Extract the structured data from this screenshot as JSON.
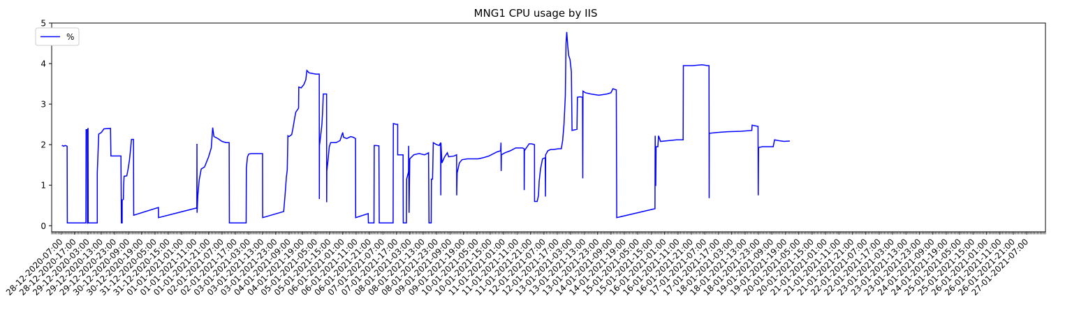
{
  "chart_data": {
    "type": "line",
    "title": "MNG1 CPU usage by IIS",
    "xlabel": "",
    "ylabel": "",
    "ylim": [
      -0.15,
      5
    ],
    "yticks": [
      0,
      1,
      2,
      3,
      4,
      5
    ],
    "x_range": [
      "2020-12-28 00:00",
      "2021-01-27 21:00"
    ],
    "xtick_labels": [
      "28-12-2020-07:00",
      "28-12-2020-17:00",
      "29-12-2020-03:00",
      "29-12-2020-13:00",
      "29-12-2020-23:00",
      "30-12-2020-09:00",
      "30-12-2020-19:00",
      "31-12-2020-05:00",
      "31-12-2020-15:00",
      "01-01-2021-01:00",
      "01-01-2021-11:00",
      "01-01-2021-21:00",
      "02-01-2021-07:00",
      "02-01-2021-17:00",
      "03-01-2021-03:00",
      "03-01-2021-13:00",
      "03-01-2021-23:00",
      "04-01-2021-09:00",
      "04-01-2021-19:00",
      "05-01-2021-05:00",
      "05-01-2021-15:00",
      "06-01-2021-01:00",
      "06-01-2021-11:00",
      "06-01-2021-21:00",
      "07-01-2021-07:00",
      "07-01-2021-17:00",
      "08-01-2021-03:00",
      "08-01-2021-13:00",
      "08-01-2021-23:00",
      "09-01-2021-09:00",
      "09-01-2021-19:00",
      "10-01-2021-05:00",
      "10-01-2021-15:00",
      "11-01-2021-01:00",
      "11-01-2021-11:00",
      "11-01-2021-21:00",
      "12-01-2021-07:00",
      "12-01-2021-17:00",
      "13-01-2021-03:00",
      "13-01-2021-13:00",
      "13-01-2021-23:00",
      "14-01-2021-09:00",
      "14-01-2021-19:00",
      "15-01-2021-05:00",
      "15-01-2021-15:00",
      "16-01-2021-01:00",
      "16-01-2021-11:00",
      "16-01-2021-21:00",
      "17-01-2021-07:00",
      "17-01-2021-17:00",
      "18-01-2021-03:00",
      "18-01-2021-13:00",
      "18-01-2021-23:00",
      "19-01-2021-09:00",
      "19-01-2021-19:00",
      "20-01-2021-05:00",
      "20-01-2021-15:00",
      "21-01-2021-01:00",
      "21-01-2021-11:00",
      "21-01-2021-21:00",
      "22-01-2021-07:00",
      "22-01-2021-17:00",
      "23-01-2021-03:00",
      "23-01-2021-13:00",
      "23-01-2021-23:00",
      "24-01-2021-09:00",
      "24-01-2021-19:00",
      "25-01-2021-05:00",
      "25-01-2021-15:00",
      "26-01-2021-01:00",
      "26-01-2021-11:00",
      "26-01-2021-21:00",
      "27-01-2021-07:00"
    ],
    "legend": {
      "position": "upper-left"
    },
    "grid": false,
    "series": [
      {
        "name": "%",
        "color": "#0000ff",
        "points": [
          [
            "2020-12-28 07:34",
            1.97
          ],
          [
            "2020-12-28 08:10",
            1.98
          ],
          [
            "2020-12-28 09:00",
            1.96
          ],
          [
            "2020-12-28 10:00",
            1.98
          ],
          [
            "2020-12-28 11:00",
            1.97
          ],
          [
            "2020-12-28 11:31",
            1.96
          ],
          [
            "2020-12-28 11:40",
            0.07
          ],
          [
            "2020-12-29 01:31",
            0.07
          ],
          [
            "2020-12-29 01:41",
            2.37
          ],
          [
            "2020-12-29 02:31",
            2.37
          ],
          [
            "2020-12-29 02:41",
            0.05
          ],
          [
            "2020-12-29 02:55",
            2.38
          ],
          [
            "2020-12-29 03:07",
            2.41
          ],
          [
            "2020-12-29 03:14",
            0.07
          ],
          [
            "2020-12-29 10:00",
            0.07
          ],
          [
            "2020-12-29 10:00",
            1.3
          ],
          [
            "2020-12-29 11:05",
            2.26
          ],
          [
            "2020-12-29 13:00",
            2.3
          ],
          [
            "2020-12-29 15:00",
            2.39
          ],
          [
            "2020-12-29 19:52",
            2.4
          ],
          [
            "2020-12-29 20:10",
            1.72
          ],
          [
            "2020-12-30 03:00",
            1.72
          ],
          [
            "2020-12-30 03:38",
            1.72
          ],
          [
            "2020-12-30 04:00",
            0.07
          ],
          [
            "2020-12-30 04:33",
            0.07
          ],
          [
            "2020-12-30 04:35",
            0.64
          ],
          [
            "2020-12-30 05:28",
            0.65
          ],
          [
            "2020-12-30 05:40",
            1.0
          ],
          [
            "2020-12-30 06:00",
            1.22
          ],
          [
            "2020-12-30 08:00",
            1.23
          ],
          [
            "2020-12-30 09:00",
            1.4
          ],
          [
            "2020-12-30 10:00",
            1.62
          ],
          [
            "2020-12-30 11:00",
            1.95
          ],
          [
            "2020-12-30 11:30",
            2.13
          ],
          [
            "2020-12-30 13:00",
            2.13
          ],
          [
            "2020-12-30 13:10",
            0.26
          ],
          [
            "2020-12-31 07:35",
            0.45
          ],
          [
            "2020-12-31 07:40",
            0.2
          ],
          [
            "2021-01-01 12:13",
            0.44
          ],
          [
            "2021-01-01 12:20",
            2.02
          ],
          [
            "2021-01-01 12:25",
            0.32
          ],
          [
            "2021-01-01 13:00",
            0.75
          ],
          [
            "2021-01-01 14:00",
            1.13
          ],
          [
            "2021-01-01 15:30",
            1.4
          ],
          [
            "2021-01-01 18:00",
            1.45
          ],
          [
            "2021-01-01 21:00",
            1.7
          ],
          [
            "2021-01-01 23:00",
            1.92
          ],
          [
            "2021-01-02 00:03",
            2.42
          ],
          [
            "2021-01-02 01:00",
            2.2
          ],
          [
            "2021-01-02 04:00",
            2.15
          ],
          [
            "2021-01-02 07:00",
            2.08
          ],
          [
            "2021-01-02 10:00",
            2.05
          ],
          [
            "2021-01-02 12:20",
            2.05
          ],
          [
            "2021-01-02 12:30",
            0.07
          ],
          [
            "2021-01-03 01:00",
            0.07
          ],
          [
            "2021-01-03 01:10",
            1.42
          ],
          [
            "2021-01-03 02:00",
            1.7
          ],
          [
            "2021-01-03 03:00",
            1.77
          ],
          [
            "2021-01-03 05:00",
            1.78
          ],
          [
            "2021-01-03 13:14",
            1.78
          ],
          [
            "2021-01-03 13:20",
            0.2
          ],
          [
            "2021-01-04 05:00",
            0.35
          ],
          [
            "2021-01-04 06:00",
            0.75
          ],
          [
            "2021-01-04 07:00",
            1.2
          ],
          [
            "2021-01-04 07:40",
            1.38
          ],
          [
            "2021-01-04 08:08",
            2.22
          ],
          [
            "2021-01-04 09:00",
            2.2
          ],
          [
            "2021-01-04 11:00",
            2.25
          ],
          [
            "2021-01-04 12:00",
            2.42
          ],
          [
            "2021-01-04 13:00",
            2.62
          ],
          [
            "2021-01-04 14:00",
            2.8
          ],
          [
            "2021-01-04 16:06",
            2.9
          ],
          [
            "2021-01-04 16:15",
            3.42
          ],
          [
            "2021-01-04 18:00",
            3.4
          ],
          [
            "2021-01-04 20:00",
            3.48
          ],
          [
            "2021-01-04 21:29",
            3.6
          ],
          [
            "2021-01-04 22:17",
            3.83
          ],
          [
            "2021-01-05 00:00",
            3.77
          ],
          [
            "2021-01-05 05:00",
            3.74
          ],
          [
            "2021-01-05 07:30",
            3.74
          ],
          [
            "2021-01-05 07:35",
            0.66
          ],
          [
            "2021-01-05 07:42",
            1.98
          ],
          [
            "2021-01-05 08:30",
            2.2
          ],
          [
            "2021-01-05 09:30",
            2.5
          ],
          [
            "2021-01-05 10:00",
            2.8
          ],
          [
            "2021-01-05 10:32",
            3.25
          ],
          [
            "2021-01-05 12:00",
            3.25
          ],
          [
            "2021-01-05 13:00",
            3.25
          ],
          [
            "2021-01-05 13:03",
            0.58
          ],
          [
            "2021-01-05 13:10",
            1.35
          ],
          [
            "2021-01-05 14:00",
            1.6
          ],
          [
            "2021-01-05 15:00",
            1.95
          ],
          [
            "2021-01-05 16:00",
            2.05
          ],
          [
            "2021-01-05 20:00",
            2.05
          ],
          [
            "2021-01-05 23:00",
            2.1
          ],
          [
            "2021-01-06 01:00",
            2.3
          ],
          [
            "2021-01-06 01:40",
            2.18
          ],
          [
            "2021-01-06 04:00",
            2.15
          ],
          [
            "2021-01-06 07:00",
            2.2
          ],
          [
            "2021-01-06 09:00",
            2.18
          ],
          [
            "2021-01-06 10:32",
            2.15
          ],
          [
            "2021-01-06 10:40",
            0.2
          ],
          [
            "2021-01-06 20:00",
            0.3
          ],
          [
            "2021-01-06 20:10",
            0.07
          ],
          [
            "2021-01-07 00:20",
            0.07
          ],
          [
            "2021-01-07 00:30",
            1.98
          ],
          [
            "2021-01-07 02:00",
            1.98
          ],
          [
            "2021-01-07 04:00",
            1.97
          ],
          [
            "2021-01-07 04:15",
            0.07
          ],
          [
            "2021-01-07 14:35",
            0.07
          ],
          [
            "2021-01-07 14:45",
            2.52
          ],
          [
            "2021-01-07 17:00",
            2.5
          ],
          [
            "2021-01-07 18:00",
            2.5
          ],
          [
            "2021-01-07 18:00",
            1.75
          ],
          [
            "2021-01-07 22:00",
            1.75
          ],
          [
            "2021-01-07 22:10",
            0.07
          ],
          [
            "2021-01-08 00:30",
            0.07
          ],
          [
            "2021-01-08 00:40",
            1.15
          ],
          [
            "2021-01-08 02:05",
            1.33
          ],
          [
            "2021-01-08 02:10",
            1.97
          ],
          [
            "2021-01-08 02:30",
            0.32
          ],
          [
            "2021-01-08 03:00",
            1.65
          ],
          [
            "2021-01-08 06:00",
            1.75
          ],
          [
            "2021-01-08 10:00",
            1.78
          ],
          [
            "2021-01-08 14:00",
            1.75
          ],
          [
            "2021-01-08 16:00",
            1.78
          ],
          [
            "2021-01-08 17:00",
            1.8
          ],
          [
            "2021-01-08 17:20",
            0.07
          ],
          [
            "2021-01-08 19:00",
            0.07
          ],
          [
            "2021-01-08 19:10",
            1.15
          ],
          [
            "2021-01-08 20:00",
            1.15
          ],
          [
            "2021-01-08 20:33",
            2.05
          ],
          [
            "2021-01-08 23:00",
            2.0
          ],
          [
            "2021-01-09 01:00",
            1.98
          ],
          [
            "2021-01-09 02:00",
            2.05
          ],
          [
            "2021-01-09 02:10",
            0.75
          ],
          [
            "2021-01-09 02:15",
            2.05
          ],
          [
            "2021-01-09 03:00",
            1.55
          ],
          [
            "2021-01-09 05:00",
            1.7
          ],
          [
            "2021-01-09 07:00",
            1.8
          ],
          [
            "2021-01-09 08:00",
            1.7
          ],
          [
            "2021-01-09 12:00",
            1.72
          ],
          [
            "2021-01-09 13:56",
            1.75
          ],
          [
            "2021-01-09 14:00",
            0.75
          ],
          [
            "2021-01-09 14:20",
            1.3
          ],
          [
            "2021-01-09 16:00",
            1.55
          ],
          [
            "2021-01-09 18:00",
            1.63
          ],
          [
            "2021-01-09 22:00",
            1.65
          ],
          [
            "2021-01-10 06:00",
            1.65
          ],
          [
            "2021-01-10 10:00",
            1.68
          ],
          [
            "2021-01-10 14:00",
            1.72
          ],
          [
            "2021-01-10 20:00",
            1.82
          ],
          [
            "2021-01-10 22:46",
            1.85
          ],
          [
            "2021-01-10 23:00",
            2.05
          ],
          [
            "2021-01-10 23:10",
            1.35
          ],
          [
            "2021-01-10 23:20",
            1.75
          ],
          [
            "2021-01-11 02:00",
            1.8
          ],
          [
            "2021-01-11 06:00",
            1.85
          ],
          [
            "2021-01-11 10:00",
            1.92
          ],
          [
            "2021-01-11 15:00",
            1.92
          ],
          [
            "2021-01-11 16:17",
            1.9
          ],
          [
            "2021-01-11 16:20",
            0.88
          ],
          [
            "2021-01-11 16:30",
            1.85
          ],
          [
            "2021-01-11 20:00",
            2.02
          ],
          [
            "2021-01-11 22:00",
            2.02
          ],
          [
            "2021-01-12 00:00",
            2.0
          ],
          [
            "2021-01-12 00:03",
            0.6
          ],
          [
            "2021-01-12 02:00",
            0.6
          ],
          [
            "2021-01-12 03:00",
            0.75
          ],
          [
            "2021-01-12 03:30",
            1.1
          ],
          [
            "2021-01-12 04:30",
            1.4
          ],
          [
            "2021-01-12 06:00",
            1.65
          ],
          [
            "2021-01-12 08:00",
            1.68
          ],
          [
            "2021-01-12 08:10",
            0.72
          ],
          [
            "2021-01-12 08:20",
            1.75
          ],
          [
            "2021-01-12 10:00",
            1.85
          ],
          [
            "2021-01-12 12:00",
            1.88
          ],
          [
            "2021-01-12 14:00",
            1.88
          ],
          [
            "2021-01-12 18:00",
            1.9
          ],
          [
            "2021-01-12 20:00",
            1.9
          ],
          [
            "2021-01-12 21:00",
            2.1
          ],
          [
            "2021-01-12 22:00",
            2.5
          ],
          [
            "2021-01-12 23:00",
            3.2
          ],
          [
            "2021-01-12 23:30",
            4.5
          ],
          [
            "2021-01-13 00:03",
            4.78
          ],
          [
            "2021-01-13 00:50",
            4.42
          ],
          [
            "2021-01-13 01:30",
            4.2
          ],
          [
            "2021-01-13 02:30",
            4.1
          ],
          [
            "2021-01-13 03:30",
            3.8
          ],
          [
            "2021-01-13 04:00",
            2.35
          ],
          [
            "2021-01-13 07:40",
            2.38
          ],
          [
            "2021-01-13 08:00",
            3.17
          ],
          [
            "2021-01-13 10:00",
            3.18
          ],
          [
            "2021-01-13 11:48",
            3.17
          ],
          [
            "2021-01-13 12:00",
            1.17
          ],
          [
            "2021-01-13 12:10",
            3.32
          ],
          [
            "2021-01-13 14:00",
            3.28
          ],
          [
            "2021-01-13 18:00",
            3.25
          ],
          [
            "2021-01-14 00:00",
            3.22
          ],
          [
            "2021-01-14 06:00",
            3.25
          ],
          [
            "2021-01-14 09:00",
            3.28
          ],
          [
            "2021-01-14 10:30",
            3.38
          ],
          [
            "2021-01-14 13:00",
            3.35
          ],
          [
            "2021-01-14 13:20",
            0.2
          ],
          [
            "2021-01-15 17:50",
            0.42
          ],
          [
            "2021-01-15 18:00",
            2.22
          ],
          [
            "2021-01-15 18:25",
            0.98
          ],
          [
            "2021-01-15 18:40",
            1.95
          ],
          [
            "2021-01-15 20:00",
            1.95
          ],
          [
            "2021-01-15 20:30",
            2.22
          ],
          [
            "2021-01-15 22:00",
            2.08
          ],
          [
            "2021-01-16 04:00",
            2.1
          ],
          [
            "2021-01-16 10:00",
            2.12
          ],
          [
            "2021-01-16 14:50",
            2.12
          ],
          [
            "2021-01-16 15:00",
            3.95
          ],
          [
            "2021-01-16 22:00",
            3.95
          ],
          [
            "2021-01-17 05:00",
            3.97
          ],
          [
            "2021-01-17 09:00",
            3.95
          ],
          [
            "2021-01-17 10:08",
            3.95
          ],
          [
            "2021-01-17 10:15",
            0.68
          ],
          [
            "2021-01-17 10:20",
            2.28
          ],
          [
            "2021-01-17 16:00",
            2.3
          ],
          [
            "2021-01-18 00:00",
            2.32
          ],
          [
            "2021-01-18 10:00",
            2.33
          ],
          [
            "2021-01-18 18:03",
            2.35
          ],
          [
            "2021-01-18 18:15",
            2.48
          ],
          [
            "2021-01-18 22:41",
            2.45
          ],
          [
            "2021-01-18 22:50",
            0.75
          ],
          [
            "2021-01-18 23:05",
            1.93
          ],
          [
            "2021-01-19 02:00",
            1.95
          ],
          [
            "2021-01-19 06:00",
            1.95
          ],
          [
            "2021-01-19 10:00",
            1.95
          ],
          [
            "2021-01-19 11:00",
            2.12
          ],
          [
            "2021-01-19 14:00",
            2.1
          ],
          [
            "2021-01-19 18:00",
            2.08
          ],
          [
            "2021-01-19 22:23",
            2.09
          ]
        ]
      }
    ]
  }
}
